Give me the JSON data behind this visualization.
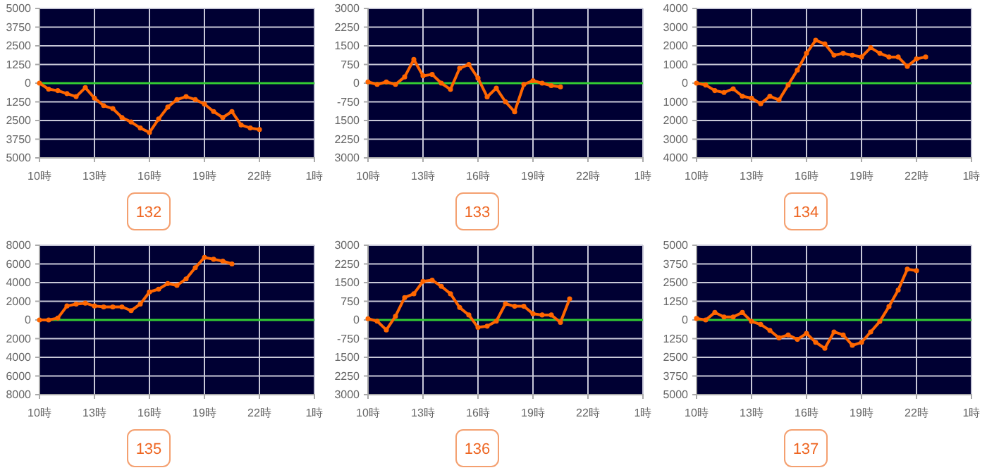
{
  "chart_data": [
    {
      "type": "line",
      "title": "132",
      "categories": [
        "10時",
        null,
        null,
        null,
        null,
        null,
        "13時",
        null,
        null,
        null,
        null,
        null,
        "16時",
        null,
        null,
        null,
        null,
        null,
        "19時",
        null,
        null,
        null,
        null,
        null,
        "22時",
        null,
        null,
        null,
        null,
        null,
        "1時"
      ],
      "ylim": [
        -5000,
        5000
      ],
      "yticks": [
        5000,
        3750,
        2500,
        1250,
        0,
        {
          "value": -1250,
          "label": "1250"
        },
        {
          "value": -2500,
          "label": "2500"
        },
        {
          "value": -3750,
          "label": "3750"
        },
        {
          "value": -5000,
          "label": "5000"
        }
      ],
      "grid": true,
      "marker": "circle",
      "ref_lines": [
        {
          "axis": "y",
          "value": 0,
          "color": "#33cc33"
        }
      ],
      "series": [
        {
          "color": "#ff6600",
          "values": [
            0,
            -400,
            -500,
            -700,
            -900,
            -300,
            -1000,
            -1500,
            -1700,
            -2300,
            -2600,
            -3000,
            -3300,
            -2400,
            -1600,
            -1100,
            -900,
            -1100,
            -1400,
            -1900,
            -2300,
            -1900,
            -2800,
            -3000,
            -3100,
            null,
            null,
            null,
            null,
            null,
            null
          ]
        }
      ]
    },
    {
      "type": "line",
      "title": "133",
      "categories": [
        "10時",
        null,
        null,
        null,
        null,
        null,
        "13時",
        null,
        null,
        null,
        null,
        null,
        "16時",
        null,
        null,
        null,
        null,
        null,
        "19時",
        null,
        null,
        null,
        null,
        null,
        "22時",
        null,
        null,
        null,
        null,
        null,
        "1時"
      ],
      "ylim": [
        -3000,
        3000
      ],
      "yticks": [
        3000,
        2250,
        1500,
        750,
        0,
        {
          "value": -750,
          "label": "-750"
        },
        {
          "value": -1500,
          "label": "1500"
        },
        {
          "value": -2250,
          "label": "2250"
        },
        {
          "value": -3000,
          "label": "3000"
        }
      ],
      "grid": true,
      "marker": "circle",
      "ref_lines": [
        {
          "axis": "y",
          "value": 0,
          "color": "#33cc33"
        }
      ],
      "series": [
        {
          "color": "#ff6600",
          "values": [
            50,
            -50,
            50,
            -50,
            250,
            950,
            300,
            350,
            0,
            -250,
            600,
            750,
            200,
            -550,
            -200,
            -750,
            -1150,
            -50,
            100,
            0,
            -100,
            -150,
            null,
            null,
            null,
            null,
            null,
            null,
            null,
            null,
            null
          ]
        }
      ]
    },
    {
      "type": "line",
      "title": "134",
      "categories": [
        "10時",
        null,
        null,
        null,
        null,
        null,
        "13時",
        null,
        null,
        null,
        null,
        null,
        "16時",
        null,
        null,
        null,
        null,
        null,
        "19時",
        null,
        null,
        null,
        null,
        null,
        "22時",
        null,
        null,
        null,
        null,
        null,
        "1時"
      ],
      "ylim": [
        -4000,
        4000
      ],
      "yticks": [
        4000,
        3000,
        2000,
        1000,
        0,
        {
          "value": -1000,
          "label": "1000"
        },
        {
          "value": -2000,
          "label": "2000"
        },
        {
          "value": -3000,
          "label": "3000"
        },
        {
          "value": -4000,
          "label": "4000"
        }
      ],
      "grid": true,
      "marker": "circle",
      "ref_lines": [
        {
          "axis": "y",
          "value": 0,
          "color": "#33cc33"
        }
      ],
      "series": [
        {
          "color": "#ff6600",
          "values": [
            0,
            -100,
            -400,
            -500,
            -300,
            -700,
            -800,
            -1100,
            -700,
            -900,
            -100,
            700,
            1600,
            2300,
            2100,
            1500,
            1600,
            1500,
            1400,
            1900,
            1600,
            1400,
            1400,
            900,
            1300,
            1400,
            null,
            null,
            null,
            null,
            null
          ]
        }
      ]
    },
    {
      "type": "line",
      "title": "135",
      "categories": [
        "10時",
        null,
        null,
        null,
        null,
        null,
        "13時",
        null,
        null,
        null,
        null,
        null,
        "16時",
        null,
        null,
        null,
        null,
        null,
        "19時",
        null,
        null,
        null,
        null,
        null,
        "22時",
        null,
        null,
        null,
        null,
        null,
        "1時"
      ],
      "ylim": [
        -8000,
        8000
      ],
      "yticks": [
        8000,
        6000,
        4000,
        2000,
        0,
        {
          "value": -2000,
          "label": "2000"
        },
        {
          "value": -4000,
          "label": "4000"
        },
        {
          "value": -6000,
          "label": "6000"
        },
        {
          "value": -8000,
          "label": "8000"
        }
      ],
      "grid": true,
      "marker": "circle",
      "ref_lines": [
        {
          "axis": "y",
          "value": 0,
          "color": "#33cc33"
        }
      ],
      "series": [
        {
          "color": "#ff6600",
          "values": [
            0,
            0,
            200,
            1500,
            1700,
            1800,
            1500,
            1400,
            1400,
            1400,
            1000,
            1700,
            3000,
            3300,
            3900,
            3700,
            4400,
            5600,
            6700,
            6500,
            6300,
            6000,
            null,
            null,
            null,
            null,
            null,
            null,
            null,
            null,
            null
          ]
        }
      ]
    },
    {
      "type": "line",
      "title": "136",
      "categories": [
        "10時",
        null,
        null,
        null,
        null,
        null,
        "13時",
        null,
        null,
        null,
        null,
        null,
        "16時",
        null,
        null,
        null,
        null,
        null,
        "19時",
        null,
        null,
        null,
        null,
        null,
        "22時",
        null,
        null,
        null,
        null,
        null,
        "1時"
      ],
      "ylim": [
        -3000,
        3000
      ],
      "yticks": [
        3000,
        2250,
        1500,
        750,
        0,
        {
          "value": -750,
          "label": "-750"
        },
        {
          "value": -1500,
          "label": "1500"
        },
        {
          "value": -2250,
          "label": "2250"
        },
        {
          "value": -3000,
          "label": "3000"
        }
      ],
      "grid": true,
      "marker": "circle",
      "ref_lines": [
        {
          "axis": "y",
          "value": 0,
          "color": "#33cc33"
        }
      ],
      "series": [
        {
          "color": "#ff6600",
          "values": [
            50,
            -50,
            -400,
            150,
            900,
            1050,
            1550,
            1600,
            1350,
            1050,
            500,
            200,
            -300,
            -250,
            -50,
            650,
            550,
            550,
            250,
            200,
            200,
            -100,
            850,
            null,
            null,
            null,
            null,
            null,
            null,
            null,
            null
          ]
        }
      ]
    },
    {
      "type": "line",
      "title": "137",
      "categories": [
        "10時",
        null,
        null,
        null,
        null,
        null,
        "13時",
        null,
        null,
        null,
        null,
        null,
        "16時",
        null,
        null,
        null,
        null,
        null,
        "19時",
        null,
        null,
        null,
        null,
        null,
        "22時",
        null,
        null,
        null,
        null,
        null,
        "1時"
      ],
      "ylim": [
        -5000,
        5000
      ],
      "yticks": [
        5000,
        3750,
        2500,
        1250,
        0,
        {
          "value": -1250,
          "label": "1250"
        },
        {
          "value": -2500,
          "label": "2500"
        },
        {
          "value": -3750,
          "label": "3750"
        },
        {
          "value": -5000,
          "label": "5000"
        }
      ],
      "grid": true,
      "marker": "circle",
      "ref_lines": [
        {
          "axis": "y",
          "value": 0,
          "color": "#33cc33"
        }
      ],
      "series": [
        {
          "color": "#ff6600",
          "values": [
            100,
            0,
            500,
            200,
            200,
            500,
            -100,
            -300,
            -700,
            -1200,
            -1000,
            -1300,
            -900,
            -1500,
            -1900,
            -800,
            -1000,
            -1700,
            -1500,
            -800,
            -100,
            900,
            2000,
            3400,
            3300,
            null,
            null,
            null,
            null,
            null,
            null
          ]
        }
      ]
    }
  ]
}
